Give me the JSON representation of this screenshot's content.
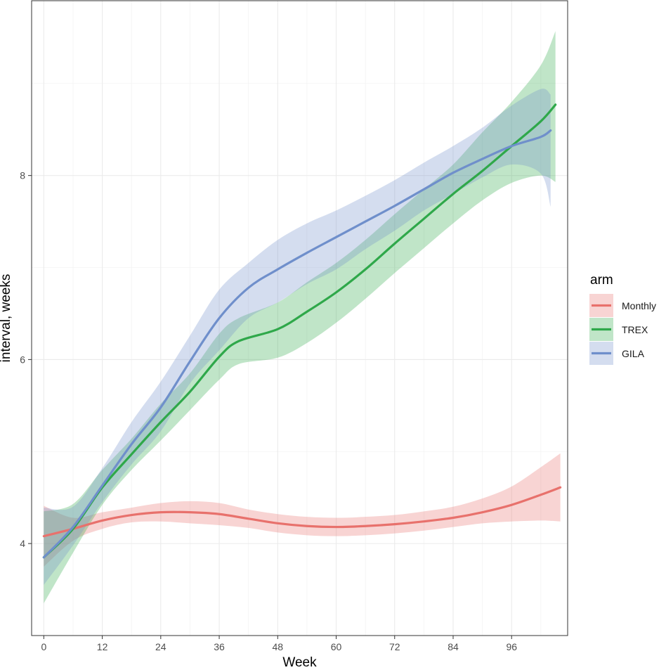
{
  "chart_data": {
    "type": "line",
    "title": "",
    "xlabel": "Week",
    "ylabel": "interval, weeks",
    "xlim": [
      -2.5,
      107.5
    ],
    "ylim": [
      3.0,
      9.9
    ],
    "x_ticks": [
      0,
      12,
      24,
      36,
      48,
      60,
      72,
      84,
      96
    ],
    "y_ticks": [
      4,
      6,
      8
    ],
    "grid": true,
    "legend": {
      "title": "arm",
      "position": "right"
    },
    "series": [
      {
        "name": "Monthly",
        "color": "#E8716C",
        "band": "confidence",
        "x": [
          0,
          6,
          12,
          18,
          24,
          30,
          36,
          42,
          48,
          54,
          60,
          66,
          72,
          78,
          84,
          90,
          96,
          102,
          106
        ],
        "y": [
          4.08,
          4.16,
          4.25,
          4.31,
          4.34,
          4.34,
          4.32,
          4.27,
          4.22,
          4.19,
          4.18,
          4.19,
          4.21,
          4.24,
          4.28,
          4.34,
          4.42,
          4.53,
          4.61
        ],
        "lower": [
          3.75,
          4.03,
          4.16,
          4.23,
          4.24,
          4.22,
          4.2,
          4.17,
          4.12,
          4.09,
          4.08,
          4.09,
          4.11,
          4.14,
          4.18,
          4.22,
          4.24,
          4.25,
          4.24
        ],
        "upper": [
          4.41,
          4.28,
          4.34,
          4.39,
          4.44,
          4.46,
          4.44,
          4.37,
          4.32,
          4.29,
          4.28,
          4.29,
          4.31,
          4.35,
          4.4,
          4.49,
          4.62,
          4.83,
          4.98
        ]
      },
      {
        "name": "TREX",
        "color": "#2FA84A",
        "band": "confidence",
        "x": [
          0,
          6,
          12,
          18,
          24,
          30,
          36,
          40,
          48,
          54,
          60,
          66,
          72,
          78,
          84,
          90,
          96,
          102,
          105
        ],
        "y": [
          3.85,
          4.16,
          4.61,
          4.97,
          5.32,
          5.65,
          6.03,
          6.2,
          6.33,
          6.52,
          6.73,
          6.98,
          7.26,
          7.53,
          7.8,
          8.05,
          8.32,
          8.59,
          8.77
        ],
        "lower": [
          3.35,
          3.9,
          4.42,
          4.8,
          5.12,
          5.45,
          5.78,
          5.95,
          6.02,
          6.18,
          6.4,
          6.66,
          6.94,
          7.21,
          7.48,
          7.73,
          7.92,
          8.0,
          7.93
        ],
        "upper": [
          4.35,
          4.43,
          4.8,
          5.14,
          5.52,
          5.85,
          6.28,
          6.45,
          6.62,
          6.84,
          7.05,
          7.3,
          7.58,
          7.85,
          8.12,
          8.47,
          8.8,
          9.2,
          9.57
        ]
      },
      {
        "name": "GILA",
        "color": "#6F8FCB",
        "band": "confidence",
        "x": [
          0,
          6,
          12,
          18,
          24,
          30,
          36,
          42,
          48,
          54,
          60,
          66,
          72,
          78,
          84,
          90,
          96,
          102,
          104
        ],
        "y": [
          3.85,
          4.18,
          4.63,
          5.08,
          5.48,
          5.98,
          6.45,
          6.78,
          6.98,
          7.16,
          7.33,
          7.5,
          7.67,
          7.85,
          8.03,
          8.18,
          8.32,
          8.42,
          8.49
        ],
        "lower": [
          3.55,
          3.98,
          4.45,
          4.86,
          5.22,
          5.74,
          6.1,
          6.45,
          6.62,
          6.82,
          6.98,
          7.2,
          7.4,
          7.62,
          7.8,
          7.98,
          8.12,
          8.02,
          7.66
        ],
        "upper": [
          4.39,
          4.4,
          4.82,
          5.32,
          5.76,
          6.26,
          6.76,
          7.05,
          7.3,
          7.48,
          7.62,
          7.78,
          7.95,
          8.14,
          8.32,
          8.52,
          8.76,
          8.94,
          8.88
        ]
      }
    ]
  }
}
